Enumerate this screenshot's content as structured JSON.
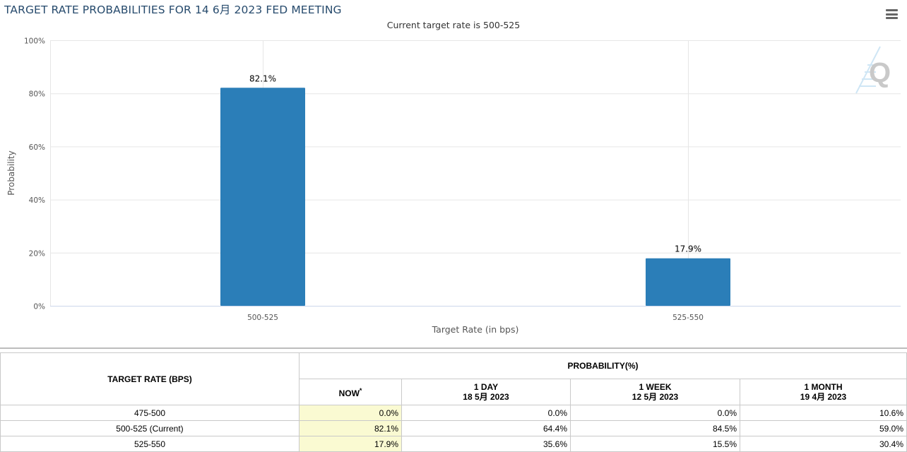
{
  "page": {
    "title": "TARGET RATE PROBABILITIES FOR 14 6月 2023 FED MEETING",
    "subtitle": "Current target rate is 500-525"
  },
  "chart_data": {
    "type": "bar",
    "title": "TARGET RATE PROBABILITIES FOR 14 6月 2023 FED MEETING",
    "subtitle": "Current target rate is 500-525",
    "categories": [
      "500-525",
      "525-550"
    ],
    "values": [
      82.1,
      17.9
    ],
    "data_labels": [
      "82.1%",
      "17.9%"
    ],
    "xlabel": "Target Rate (in bps)",
    "ylabel": "Probability",
    "ylim": [
      0,
      100
    ],
    "yticks": [
      0,
      20,
      40,
      60,
      80,
      100
    ],
    "ytick_labels": [
      "0%",
      "20%",
      "40%",
      "60%",
      "80%",
      "100%"
    ],
    "grid": true,
    "bar_color": "#2b7eb8"
  },
  "table": {
    "header_rate": "TARGET RATE (BPS)",
    "header_prob": "PROBABILITY(%)",
    "now_label": "NOW",
    "now_mark": "*",
    "columns": [
      {
        "line1": "1 DAY",
        "line2": "18 5月 2023"
      },
      {
        "line1": "1 WEEK",
        "line2": "12 5月 2023"
      },
      {
        "line1": "1 MONTH",
        "line2": "19 4月 2023"
      }
    ],
    "rows": [
      {
        "rate": "475-500",
        "now": "0.0%",
        "day": "0.0%",
        "week": "0.0%",
        "month": "10.6%"
      },
      {
        "rate": "500-525 (Current)",
        "now": "82.1%",
        "day": "64.4%",
        "week": "84.5%",
        "month": "59.0%"
      },
      {
        "rate": "525-550",
        "now": "17.9%",
        "day": "35.6%",
        "week": "15.5%",
        "month": "30.4%"
      }
    ]
  }
}
